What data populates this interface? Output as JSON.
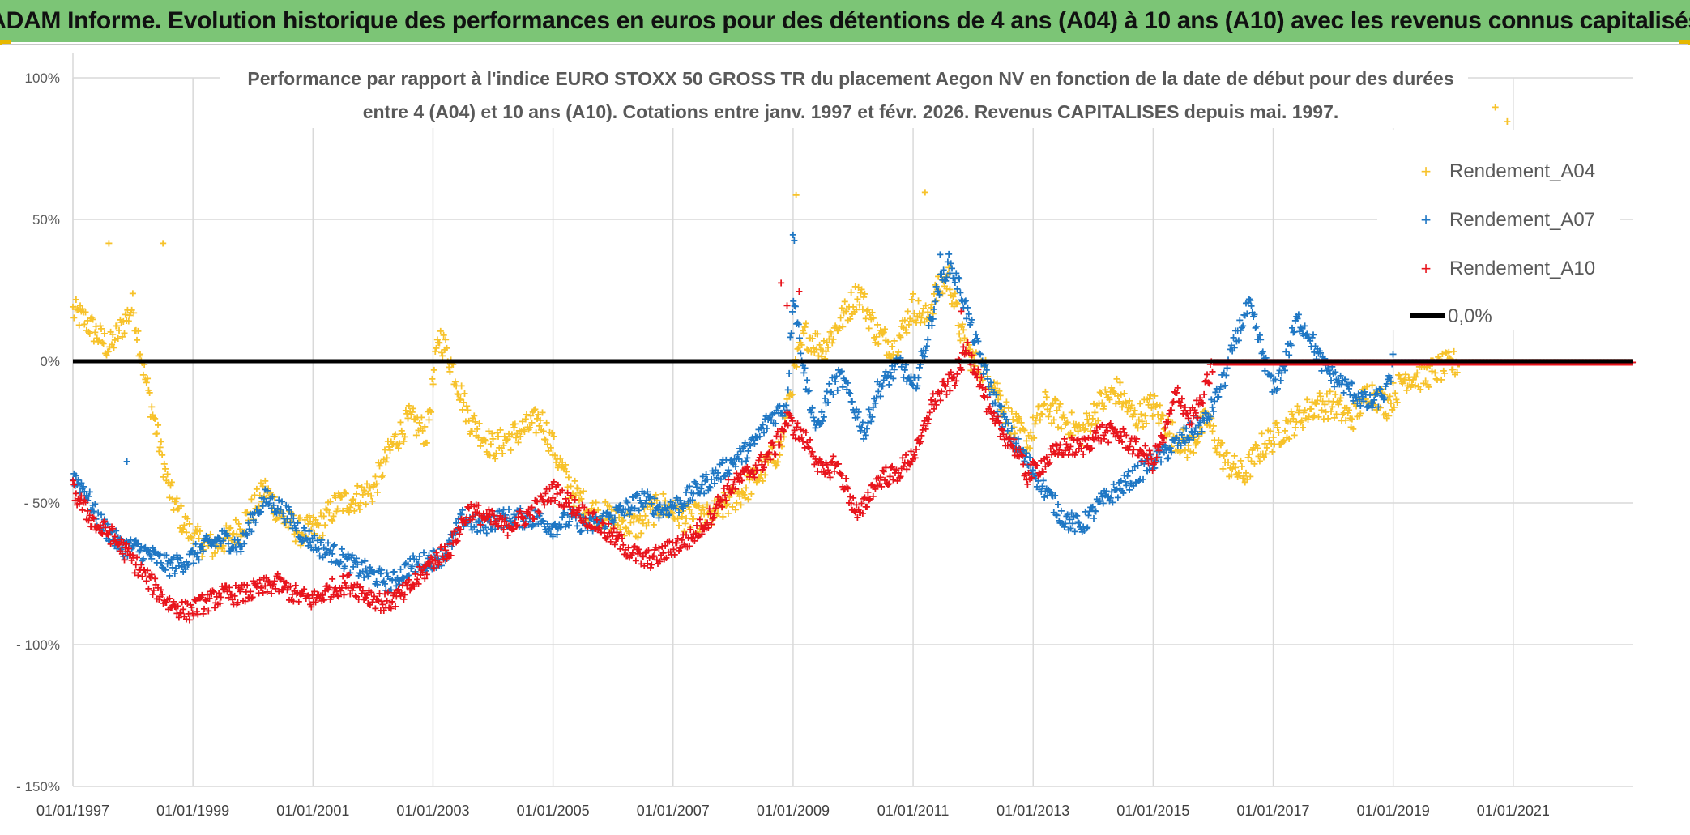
{
  "banner": {
    "title": "ADAM Informe. Evolution historique des performances en euros pour des détentions de 4 ans (A04) à 10 ans (A10) avec les revenus connus capitalisés"
  },
  "colors": {
    "banner_bg": "#7cc576",
    "a04": "#f7c22a",
    "a07": "#1f77c4",
    "a10": "#e8141c",
    "zero": "#000000",
    "grid": "#d9d9d9"
  },
  "chart_data": {
    "type": "scatter",
    "title_line1": "Performance par rapport à l'indice EURO STOXX 50 GROSS TR  du placement Aegon NV en fonction de la date de début pour des durées",
    "title_line2": "entre 4 (A04) et 10 ans (A10). Cotations entre janv. 1997 et févr. 2026. Revenus CAPITALISES depuis mai. 1997.",
    "xlabel": "",
    "ylabel": "",
    "xlim": [
      1997.0,
      2023.0
    ],
    "ylim": [
      -150,
      100
    ],
    "y_ticks": [
      100,
      50,
      0,
      -50,
      -100,
      -150
    ],
    "y_tick_labels": [
      "100%",
      "50%",
      "0%",
      "- 50%",
      "- 100%",
      "- 150%"
    ],
    "x_ticks": [
      1997,
      1999,
      2001,
      2003,
      2005,
      2007,
      2009,
      2011,
      2013,
      2015,
      2017,
      2019,
      2021
    ],
    "x_tick_labels": [
      "01/01/1997",
      "01/01/1999",
      "01/01/2001",
      "01/01/2003",
      "01/01/2005",
      "01/01/2007",
      "01/01/2009",
      "01/01/2011",
      "01/01/2013",
      "01/01/2015",
      "01/01/2017",
      "01/01/2019",
      "01/01/2021"
    ],
    "legend_position": "top-right",
    "legend": [
      "Rendement_A04",
      "Rendement_A07",
      "Rendement_A10",
      "0,0%"
    ],
    "series": [
      {
        "name": "Rendement_A04",
        "x": [
          1997.0,
          1997.2,
          1997.4,
          1997.6,
          1997.8,
          1998.0,
          1998.2,
          1998.4,
          1998.6,
          1998.8,
          1999.0,
          1999.3,
          1999.6,
          1999.9,
          2000.2,
          2000.5,
          2000.8,
          2001.1,
          2001.4,
          2001.7,
          2002.0,
          2002.3,
          2002.6,
          2002.9,
          2003.1,
          2003.3,
          2003.6,
          2004.0,
          2004.4,
          2004.8,
          2005.0,
          2005.3,
          2005.6,
          2006.0,
          2006.4,
          2006.8,
          2007.2,
          2007.6,
          2007.9,
          2008.2,
          2008.5,
          2008.8,
          2009.0,
          2009.2,
          2009.5,
          2009.8,
          2010.1,
          2010.4,
          2010.7,
          2011.0,
          2011.2,
          2011.4,
          2011.6,
          2011.8,
          2012.0,
          2012.3,
          2012.6,
          2012.9,
          2013.2,
          2013.5,
          2013.8,
          2014.1,
          2014.4,
          2014.7,
          2015.0,
          2015.3,
          2015.6,
          2015.9,
          2016.2,
          2016.5,
          2016.8,
          2017.1,
          2017.4,
          2017.7,
          2018.0,
          2018.3,
          2018.6,
          2018.9,
          2019.2,
          2019.5,
          2019.8,
          2020.1,
          2020.4,
          2020.7,
          2021.0,
          2021.4,
          2021.8,
          2022.2,
          2022.6,
          2023.0
        ],
        "y": [
          18,
          15,
          10,
          5,
          12,
          20,
          -5,
          -25,
          -45,
          -55,
          -62,
          -65,
          -62,
          -55,
          -45,
          -55,
          -60,
          -58,
          -50,
          -48,
          -45,
          -30,
          -20,
          -25,
          10,
          0,
          -20,
          -30,
          -25,
          -20,
          -30,
          -45,
          -52,
          -55,
          -58,
          -50,
          -55,
          -55,
          -50,
          -45,
          -38,
          -30,
          -5,
          10,
          5,
          15,
          25,
          10,
          5,
          20,
          15,
          25,
          30,
          10,
          0,
          -5,
          -20,
          -28,
          -15,
          -20,
          -25,
          -15,
          -10,
          -20,
          -15,
          -25,
          -30,
          -20,
          -35,
          -40,
          -30,
          -25,
          -20,
          -15,
          -15,
          -20,
          -10,
          -15,
          -5,
          -5,
          -2,
          0,
          0,
          0,
          0,
          0,
          0,
          0,
          0,
          0
        ],
        "noise": 5,
        "outliers": [
          [
            2020.7,
            90
          ],
          [
            2020.9,
            85
          ],
          [
            2020.5,
            78
          ],
          [
            2009.05,
            59
          ],
          [
            2011.2,
            60
          ],
          [
            1997.6,
            42
          ],
          [
            1998.5,
            42
          ]
        ]
      },
      {
        "name": "Rendement_A07",
        "x": [
          1997.0,
          1997.2,
          1997.4,
          1997.6,
          1997.8,
          1998.0,
          1998.3,
          1998.6,
          1998.9,
          1999.2,
          1999.5,
          1999.8,
          2000.0,
          2000.2,
          2000.5,
          2000.8,
          2001.1,
          2001.4,
          2001.7,
          2002.0,
          2002.3,
          2002.6,
          2002.9,
          2003.2,
          2003.5,
          2003.8,
          2004.1,
          2004.4,
          2004.7,
          2005.0,
          2005.3,
          2005.6,
          2005.9,
          2006.2,
          2006.5,
          2006.8,
          2007.1,
          2007.4,
          2007.7,
          2008.0,
          2008.3,
          2008.6,
          2008.9,
          2009.0,
          2009.2,
          2009.4,
          2009.6,
          2009.8,
          2010.0,
          2010.2,
          2010.4,
          2010.6,
          2010.8,
          2011.0,
          2011.2,
          2011.4,
          2011.6,
          2011.8,
          2012.0,
          2012.3,
          2012.6,
          2012.9,
          2013.2,
          2013.5,
          2013.8,
          2014.1,
          2014.4,
          2014.7,
          2015.0,
          2015.3,
          2015.6,
          2015.9,
          2016.2,
          2016.4,
          2016.6,
          2016.8,
          2017.0,
          2017.2,
          2017.4,
          2017.6,
          2017.8,
          2018.0,
          2018.3,
          2018.6,
          2018.9,
          2019.0,
          2019.3,
          2019.6,
          2020.0,
          2020.5,
          2021.0,
          2021.5,
          2022.0,
          2022.5,
          2023.0
        ],
        "y": [
          -40,
          -45,
          -55,
          -60,
          -65,
          -65,
          -68,
          -72,
          -70,
          -65,
          -62,
          -65,
          -55,
          -48,
          -52,
          -60,
          -65,
          -68,
          -72,
          -75,
          -78,
          -72,
          -70,
          -68,
          -55,
          -58,
          -55,
          -55,
          -55,
          -58,
          -55,
          -58,
          -55,
          -52,
          -48,
          -52,
          -50,
          -45,
          -40,
          -35,
          -30,
          -20,
          -15,
          25,
          -5,
          -25,
          -10,
          -5,
          -15,
          -25,
          -10,
          -5,
          0,
          -10,
          5,
          25,
          35,
          25,
          10,
          -10,
          -25,
          -35,
          -45,
          -55,
          -58,
          -50,
          -45,
          -40,
          -35,
          -30,
          -25,
          -20,
          -5,
          10,
          20,
          5,
          -10,
          0,
          15,
          10,
          0,
          -5,
          -10,
          -15,
          -10,
          0,
          0,
          0,
          0,
          0,
          0,
          0,
          0,
          0,
          0
        ],
        "noise": 3.5,
        "outliers": [
          [
            2009.0,
            45
          ],
          [
            2009.02,
            43
          ],
          [
            1997.9,
            -35
          ],
          [
            2011.45,
            38
          ]
        ]
      },
      {
        "name": "Rendement_A10",
        "x": [
          1997.0,
          1997.2,
          1997.4,
          1997.6,
          1997.8,
          1998.0,
          1998.3,
          1998.6,
          1998.9,
          1999.2,
          1999.5,
          1999.8,
          2000.1,
          2000.4,
          2000.7,
          2001.0,
          2001.3,
          2001.6,
          2001.9,
          2002.2,
          2002.5,
          2002.8,
          2003.0,
          2003.3,
          2003.6,
          2003.9,
          2004.2,
          2004.5,
          2004.8,
          2005.0,
          2005.3,
          2005.6,
          2005.9,
          2006.2,
          2006.5,
          2006.8,
          2007.0,
          2007.3,
          2007.6,
          2007.9,
          2008.2,
          2008.5,
          2008.7,
          2008.9,
          2009.1,
          2009.3,
          2009.5,
          2009.7,
          2009.9,
          2010.1,
          2010.3,
          2010.5,
          2010.7,
          2010.9,
          2011.1,
          2011.3,
          2011.5,
          2011.7,
          2011.9,
          2012.1,
          2012.3,
          2012.5,
          2012.7,
          2012.9,
          2013.2,
          2013.5,
          2013.8,
          2014.1,
          2014.4,
          2014.7,
          2015.0,
          2015.2,
          2015.4,
          2015.6,
          2015.8,
          2016.0,
          2016.5,
          2017.0,
          2018.0,
          2019.0,
          2020.0,
          2021.0,
          2022.0,
          2023.0
        ],
        "y": [
          -45,
          -52,
          -58,
          -60,
          -65,
          -70,
          -78,
          -85,
          -88,
          -85,
          -82,
          -82,
          -80,
          -78,
          -82,
          -84,
          -80,
          -78,
          -82,
          -85,
          -82,
          -75,
          -70,
          -65,
          -52,
          -55,
          -58,
          -55,
          -50,
          -45,
          -50,
          -55,
          -60,
          -65,
          -70,
          -68,
          -65,
          -62,
          -55,
          -45,
          -40,
          -35,
          -30,
          -20,
          -25,
          -30,
          -40,
          -35,
          -45,
          -55,
          -45,
          -40,
          -40,
          -35,
          -30,
          -15,
          -10,
          -5,
          5,
          -5,
          -20,
          -25,
          -30,
          -40,
          -35,
          -30,
          -30,
          -25,
          -25,
          -30,
          -35,
          -25,
          -10,
          -20,
          -15,
          0,
          0,
          0,
          0,
          0,
          0,
          0,
          0,
          0
        ],
        "noise": 3.5,
        "outliers": [
          [
            2008.8,
            28
          ],
          [
            2008.9,
            20
          ],
          [
            2009.1,
            25
          ],
          [
            2011.8,
            18
          ]
        ]
      }
    ],
    "reference_line": {
      "name": "0,0%",
      "y": 0,
      "x": [
        1997.0,
        2023.0
      ]
    }
  }
}
